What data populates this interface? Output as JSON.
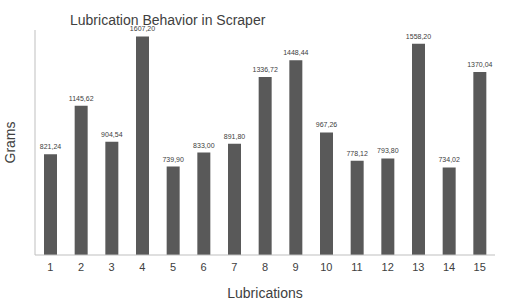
{
  "chart_data": {
    "type": "bar",
    "title": "Lubrication Behavior in Scraper",
    "x_label": "Lubrications",
    "y_label": "Grams",
    "categories": [
      "1",
      "2",
      "3",
      "4",
      "5",
      "6",
      "7",
      "8",
      "9",
      "10",
      "11",
      "12",
      "13",
      "14",
      "15"
    ],
    "values": [
      821.24,
      1145.62,
      904.54,
      1607.2,
      739.9,
      833.0,
      891.8,
      1336.72,
      1448.44,
      967.26,
      778.12,
      793.8,
      1558.2,
      734.02,
      1370.04
    ],
    "value_labels": [
      "821,24",
      "1145,62",
      "904,54",
      "1607,20",
      "739,90",
      "833,00",
      "891,80",
      "1336,72",
      "1448,44",
      "967,26",
      "778,12",
      "793,80",
      "1558,20",
      "734,02",
      "1370,04"
    ],
    "color": "#595959",
    "ylim": [
      150,
      1650
    ],
    "grid": false,
    "data_labels": true,
    "tick_labels": "x"
  }
}
